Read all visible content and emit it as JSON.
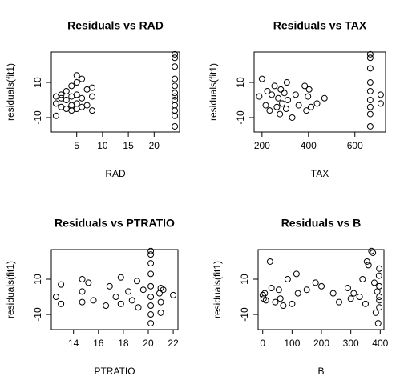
{
  "chart_data": [
    {
      "type": "scatter",
      "title": "Residuals vs RAD",
      "xlabel": "RAD",
      "ylabel": "residuals(fit1)",
      "x": [
        1,
        1,
        1,
        2,
        2,
        2,
        3,
        3,
        3,
        4,
        4,
        4,
        4,
        5,
        5,
        5,
        5,
        5,
        6,
        6,
        6,
        7,
        7,
        8,
        8,
        8,
        24,
        24,
        24,
        24,
        24,
        24,
        24,
        24,
        24,
        24,
        24,
        24
      ],
      "values": [
        -9,
        2,
        -2,
        3,
        -4,
        1,
        -5,
        5,
        0,
        8,
        -3,
        -6,
        2,
        14,
        10,
        -5,
        3,
        -2,
        12,
        -4,
        1,
        6,
        -3,
        7,
        -6,
        2,
        26,
        24,
        19,
        12,
        8,
        4,
        0,
        -3,
        -6,
        -9,
        -15,
        2
      ],
      "xlim": [
        0.08,
        24.92
      ],
      "ylim": [
        -18.2,
        27.3
      ],
      "xticks": [
        5,
        10,
        15,
        20
      ],
      "yticks": [
        -10,
        10
      ]
    },
    {
      "type": "scatter",
      "title": "Residuals vs TAX",
      "xlabel": "TAX",
      "ylabel": "residuals(fit1)",
      "x": [
        188,
        200,
        216,
        223,
        233,
        242,
        254,
        264,
        270,
        277,
        281,
        287,
        296,
        304,
        307,
        311,
        330,
        345,
        358,
        384,
        391,
        398,
        403,
        411,
        437,
        469,
        666,
        666,
        666,
        666,
        666,
        666,
        666,
        666,
        666,
        711,
        711
      ],
      "values": [
        2,
        12,
        -3,
        5,
        -6,
        3,
        8,
        -4,
        1,
        -8,
        6,
        -2,
        4,
        -5,
        10,
        0,
        -10,
        3,
        -3,
        8,
        -6,
        2,
        6,
        -4,
        -2,
        1,
        26,
        24,
        18,
        10,
        5,
        0,
        -4,
        -8,
        -15,
        3,
        -2
      ],
      "xlim": [
        166,
        732
      ],
      "ylim": [
        -18.2,
        27.3
      ],
      "xticks": [
        200,
        400,
        600
      ],
      "yticks": [
        -10,
        10
      ]
    },
    {
      "type": "scatter",
      "title": "Residuals vs PTRATIO",
      "xlabel": "PTRATIO",
      "ylabel": "residuals(fit1)",
      "x": [
        12.6,
        13,
        13,
        14.7,
        14.7,
        14.7,
        15.2,
        15.6,
        16.6,
        16.9,
        17.4,
        17.8,
        17.8,
        18.4,
        18.7,
        19.1,
        19.2,
        19.6,
        20.2,
        20.2,
        20.2,
        20.2,
        20.2,
        20.2,
        20.2,
        20.2,
        20.2,
        20.9,
        21,
        21,
        21,
        21.2,
        22
      ],
      "values": [
        0,
        7,
        -4,
        10,
        -3,
        3,
        8,
        -2,
        -5,
        6,
        0,
        -4,
        11,
        3,
        -2,
        9,
        -6,
        4,
        26,
        24,
        19,
        13,
        6,
        0,
        -5,
        -10,
        -15,
        2,
        -3,
        5,
        -9,
        4,
        1
      ],
      "xlim": [
        12.22,
        22.38
      ],
      "ylim": [
        -18.6,
        26.8
      ],
      "xticks": [
        14,
        16,
        18,
        20,
        22
      ],
      "yticks": [
        -10,
        10
      ]
    },
    {
      "type": "scatter",
      "title": "Residuals vs B",
      "xlabel": "B",
      "ylabel": "residuals(fit1)",
      "x": [
        0.3,
        3,
        7,
        11,
        25,
        30,
        43,
        55,
        60,
        70,
        85,
        100,
        115,
        120,
        150,
        180,
        200,
        240,
        260,
        290,
        300,
        310,
        330,
        340,
        350,
        355,
        360,
        370,
        375,
        380,
        385,
        390,
        393,
        396,
        396.9,
        396.9,
        396.9,
        396.9,
        396.9
      ],
      "values": [
        1,
        -1,
        2,
        -2,
        20,
        5,
        -3,
        4,
        -1,
        -5,
        10,
        -4,
        13,
        2,
        4,
        8,
        6,
        2,
        -3,
        5,
        -1,
        2,
        0,
        10,
        -4,
        20,
        18,
        26,
        25,
        8,
        -9,
        3,
        -15,
        12,
        6,
        -2,
        16,
        -6,
        0
      ],
      "xlim": [
        -15.6,
        412.8
      ],
      "ylim": [
        -18.6,
        26.8
      ],
      "xticks": [
        0,
        100,
        200,
        300,
        400
      ],
      "yticks": [
        -10,
        10
      ]
    }
  ]
}
